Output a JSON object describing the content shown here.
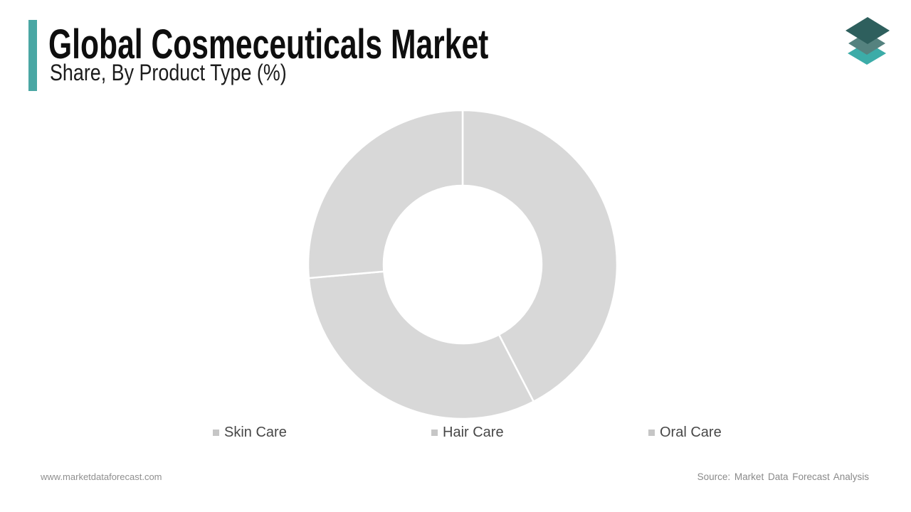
{
  "header": {
    "title": "Global Cosmeceuticals Market",
    "subtitle": "Share, By Product Type (%)",
    "accent_color": "#4AA7A4"
  },
  "logo": {
    "name": "market-data-forecast-layers-logo",
    "layer_colors": {
      "top": "#2E5F5D",
      "middle": "#55827F",
      "bottom": "#3CACA8"
    }
  },
  "chart_data": {
    "type": "pie",
    "variant": "donut",
    "title": "Global Cosmeceuticals Market Share, By Product Type (%)",
    "unit": "percent",
    "categories": [
      "Skin Care",
      "Hair Care",
      "Oral Care"
    ],
    "values": [
      42.4,
      31.2,
      26.4
    ],
    "start_angle_deg": 0,
    "direction": "clockwise",
    "inner_radius_ratio": 0.51,
    "slice_color": "#D8D8D8",
    "divider_color": "#FFFFFF",
    "divider_width": 2.5,
    "data_labels": false,
    "legend_position": "bottom",
    "legend_marker_color": "#C6C6C6"
  },
  "footer": {
    "website": "www.marketdataforecast.com",
    "source": "Source: Market Data Forecast Analysis"
  }
}
